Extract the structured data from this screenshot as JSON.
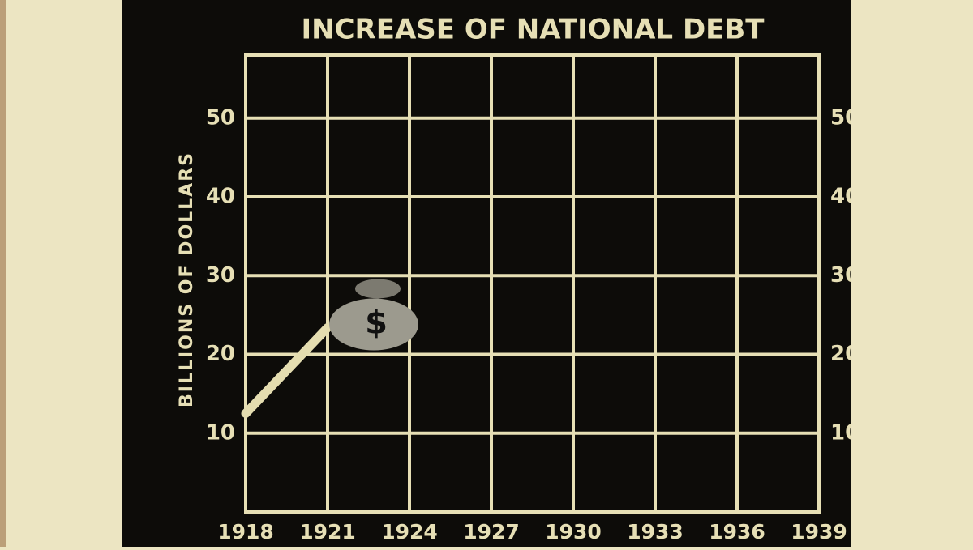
{
  "chart_data": {
    "type": "line",
    "title": "INCREASE OF NATIONAL DEBT",
    "y_label": "BILLIONS OF DOLLARS",
    "x": [
      1918,
      1921
    ],
    "values": [
      12.5,
      23.4
    ],
    "color": "#e4ddb0",
    "marker_label": "$",
    "xlim": [
      1918,
      1939
    ],
    "xticks": [
      1918,
      1921,
      1924,
      1927,
      1930,
      1933,
      1936,
      1939
    ],
    "ylim": [
      0,
      58
    ],
    "yticks": [
      10,
      20,
      30,
      40,
      50
    ],
    "grid": true
  }
}
